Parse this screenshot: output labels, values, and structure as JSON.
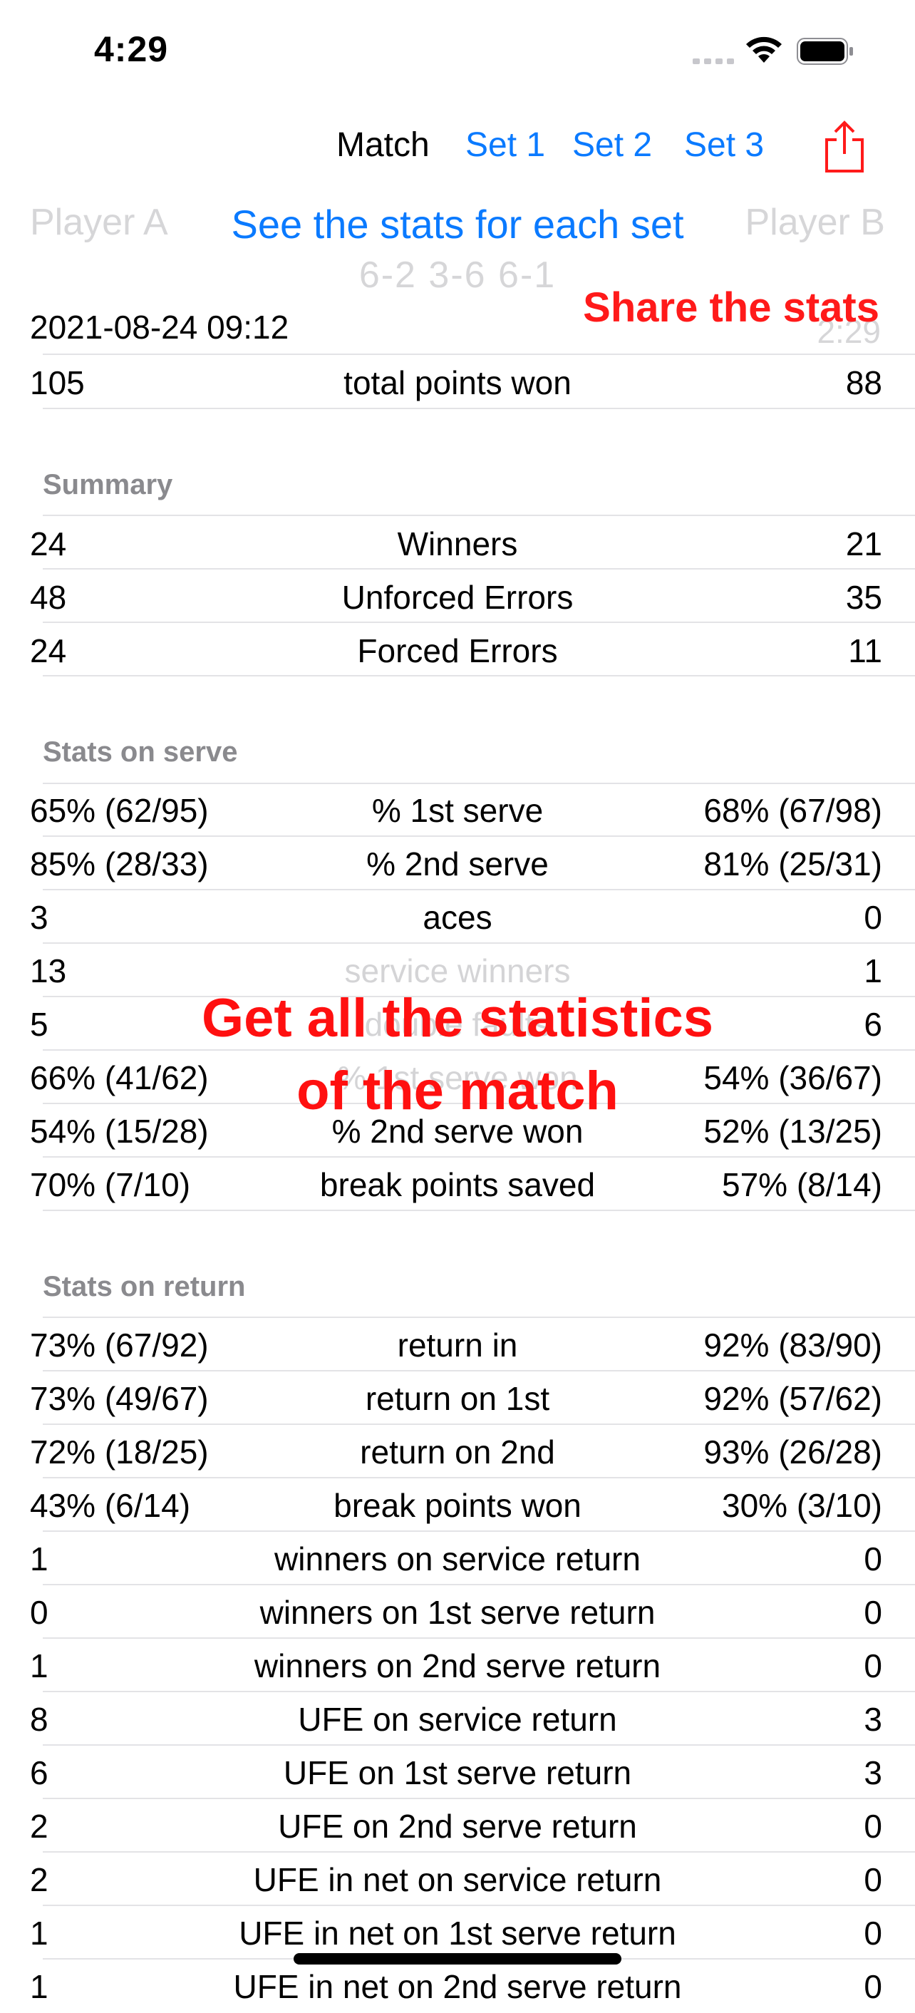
{
  "status": {
    "time": "4:29"
  },
  "nav": {
    "match": "Match",
    "set1": "Set 1",
    "set2": "Set 2",
    "set3": "Set 3"
  },
  "header": {
    "player_a": "Player A",
    "player_b": "Player B",
    "score": "6-2 3-6 6-1",
    "date": "2021-08-24 09:12",
    "duration": "2:29"
  },
  "callouts": {
    "sets": "See the stats for each set",
    "share": "Share the stats",
    "statistics_line1": "Get all the statistics",
    "statistics_line2": "of the match"
  },
  "total": {
    "a": "105",
    "label": "total points won",
    "b": "88"
  },
  "summary": {
    "title": "Summary",
    "rows": [
      {
        "a": "24",
        "label": "Winners",
        "b": "21"
      },
      {
        "a": "48",
        "label": "Unforced Errors",
        "b": "35"
      },
      {
        "a": "24",
        "label": "Forced Errors",
        "b": "11"
      }
    ]
  },
  "serve": {
    "title": "Stats on serve",
    "rows": [
      {
        "a": "65% (62/95)",
        "label": "% 1st serve",
        "b": "68% (67/98)"
      },
      {
        "a": "85% (28/33)",
        "label": "% 2nd serve",
        "b": "81% (25/31)"
      },
      {
        "a": "3",
        "label": "aces",
        "b": "0"
      },
      {
        "a": "13",
        "label": "service winners",
        "b": "1"
      },
      {
        "a": "5",
        "label": "double faults",
        "b": "6"
      },
      {
        "a": "66% (41/62)",
        "label": "% 1st serve won",
        "b": "54% (36/67)"
      },
      {
        "a": "54% (15/28)",
        "label": "% 2nd serve won",
        "b": "52% (13/25)"
      },
      {
        "a": "70% (7/10)",
        "label": "break points saved",
        "b": "57% (8/14)"
      }
    ]
  },
  "return": {
    "title": "Stats on return",
    "rows": [
      {
        "a": "73% (67/92)",
        "label": "return in",
        "b": "92% (83/90)"
      },
      {
        "a": "73% (49/67)",
        "label": "return on 1st",
        "b": "92% (57/62)"
      },
      {
        "a": "72% (18/25)",
        "label": "return on 2nd",
        "b": "93% (26/28)"
      },
      {
        "a": "43% (6/14)",
        "label": "break points won",
        "b": "30% (3/10)"
      },
      {
        "a": "1",
        "label": "winners on service return",
        "b": "0"
      },
      {
        "a": "0",
        "label": "winners on 1st serve return",
        "b": "0"
      },
      {
        "a": "1",
        "label": "winners on 2nd serve return",
        "b": "0"
      },
      {
        "a": "8",
        "label": "UFE on service return",
        "b": "3"
      },
      {
        "a": "6",
        "label": "UFE on 1st serve return",
        "b": "3"
      },
      {
        "a": "2",
        "label": "UFE on 2nd serve return",
        "b": "0"
      },
      {
        "a": "2",
        "label": "UFE in net on service return",
        "b": "0"
      },
      {
        "a": "1",
        "label": "UFE in net on 1st serve return",
        "b": "0"
      },
      {
        "a": "1",
        "label": "UFE in net on 2nd serve return",
        "b": "0"
      }
    ]
  }
}
